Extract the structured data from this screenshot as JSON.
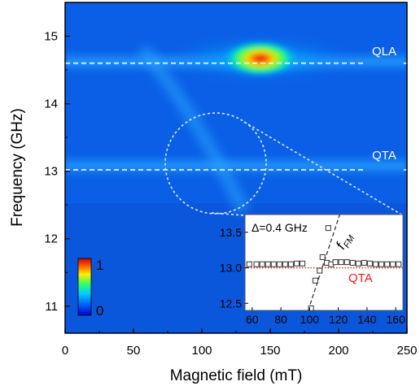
{
  "chart_data": [
    {
      "type": "heatmap",
      "xlabel": "Magnetic field (mT)",
      "ylabel": "Frequency (GHz)",
      "xlim": [
        0,
        250
      ],
      "ylim": [
        10.6,
        15.5
      ],
      "xticks": [
        0,
        50,
        100,
        150,
        200,
        250
      ],
      "yticks": [
        11,
        12,
        13,
        14,
        15
      ],
      "colorbar": {
        "min_label": "0",
        "max_label": "1",
        "placement": "bottom-left"
      },
      "reference_lines": [
        {
          "label": "QLA",
          "frequency": 14.6
        },
        {
          "label": "QTA",
          "frequency": 13.02
        }
      ],
      "peaks": [
        {
          "field": 143,
          "frequency": 14.65,
          "intensity": 1.0
        }
      ],
      "zoom_circle": {
        "center_field": 110,
        "center_frequency": 13.02
      }
    },
    {
      "type": "scatter",
      "annotation": "Δ=0.4 GHz",
      "xlim": [
        55,
        165
      ],
      "ylim": [
        12.4,
        13.75
      ],
      "xticks": [
        60,
        80,
        100,
        120,
        140,
        160
      ],
      "yticks": [
        12.5,
        13.0,
        13.5
      ],
      "series": [
        {
          "name": "QTA",
          "color": "#e02020",
          "style": "dotted",
          "values": [
            [
              55,
              13.0
            ],
            [
              165,
              13.0
            ]
          ]
        },
        {
          "name": "f_FM",
          "color": "#333333",
          "style": "dashed",
          "values": [
            [
              99,
              12.4
            ],
            [
              121,
              13.75
            ]
          ]
        }
      ],
      "points": [
        [
          58,
          13.05
        ],
        [
          63,
          13.05
        ],
        [
          67,
          13.05
        ],
        [
          71,
          13.05
        ],
        [
          75,
          13.05
        ],
        [
          79,
          13.05
        ],
        [
          83,
          13.05
        ],
        [
          87,
          13.05
        ],
        [
          91,
          13.06
        ],
        [
          95,
          13.06
        ],
        [
          101,
          12.43
        ],
        [
          104,
          12.82
        ],
        [
          107,
          12.96
        ],
        [
          109,
          13.15
        ],
        [
          112,
          13.07
        ],
        [
          115,
          13.05
        ],
        [
          118,
          13.08
        ],
        [
          122,
          13.08
        ],
        [
          126,
          13.08
        ],
        [
          130,
          13.07
        ],
        [
          134,
          13.06
        ],
        [
          138,
          13.07
        ],
        [
          142,
          13.06
        ],
        [
          146,
          13.05
        ],
        [
          150,
          13.05
        ],
        [
          154,
          13.05
        ],
        [
          158,
          13.05
        ],
        [
          162,
          13.05
        ],
        [
          113,
          13.56
        ]
      ],
      "labels": {
        "fm": "f",
        "fm_sub": "FM",
        "qta": "QTA"
      }
    }
  ]
}
